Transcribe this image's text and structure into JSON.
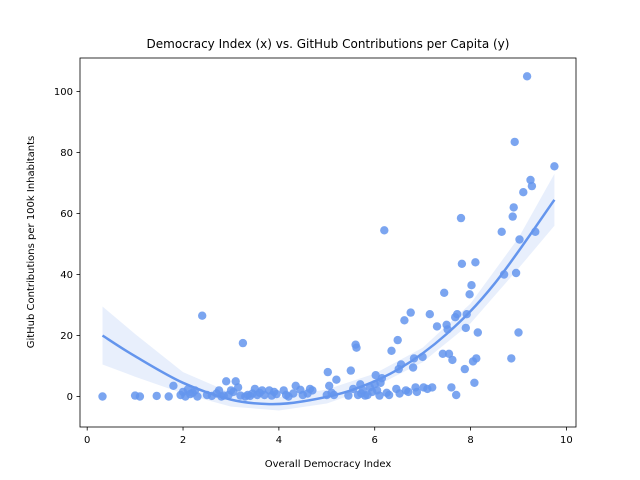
{
  "chart_data": {
    "type": "scatter",
    "title": "Democracy Index (x) vs. GitHub Contributions per Capita (y)",
    "xlabel": "Overall Democracy Index",
    "ylabel": "GitHub Contributions per 100k Inhabitants",
    "xlim": [
      -0.15,
      10.2
    ],
    "ylim": [
      -10,
      111
    ],
    "xticks": [
      0,
      2,
      4,
      6,
      8,
      10
    ],
    "yticks": [
      0,
      20,
      40,
      60,
      80,
      100
    ],
    "grid": false,
    "point_color": "#6495ED",
    "fit": {
      "type": "quadratic",
      "x_range": [
        0.32,
        9.75
      ],
      "line_points": [
        [
          0.32,
          20
        ],
        [
          1.0,
          13.2
        ],
        [
          2.0,
          4.5
        ],
        [
          3.0,
          -1.0
        ],
        [
          3.8,
          -2.5
        ],
        [
          4.5,
          -1.6
        ],
        [
          5.5,
          2.0
        ],
        [
          6.5,
          9.0
        ],
        [
          7.5,
          20.5
        ],
        [
          8.5,
          37.0
        ],
        [
          9.75,
          64.5
        ]
      ],
      "ci_upper": [
        [
          0.32,
          29.5
        ],
        [
          1.0,
          20.5
        ],
        [
          2.0,
          8.0
        ],
        [
          3.0,
          1.2
        ],
        [
          4.0,
          -0.2
        ],
        [
          5.0,
          2.3
        ],
        [
          6.0,
          7.5
        ],
        [
          7.0,
          16.0
        ],
        [
          8.0,
          30.5
        ],
        [
          9.0,
          52.0
        ],
        [
          9.75,
          73.0
        ]
      ],
      "ci_lower": [
        [
          0.32,
          10.5
        ],
        [
          1.0,
          6.5
        ],
        [
          2.0,
          1.0
        ],
        [
          3.0,
          -3.3
        ],
        [
          4.0,
          -4.6
        ],
        [
          5.0,
          -2.3
        ],
        [
          6.0,
          3.2
        ],
        [
          7.0,
          11.2
        ],
        [
          8.0,
          24.0
        ],
        [
          9.0,
          42.0
        ],
        [
          9.75,
          56.0
        ]
      ]
    },
    "points": [
      [
        0.32,
        0
      ],
      [
        1.0,
        0.3
      ],
      [
        1.1,
        0
      ],
      [
        1.45,
        0.2
      ],
      [
        1.7,
        0
      ],
      [
        1.8,
        3.5
      ],
      [
        1.95,
        0.5
      ],
      [
        2.0,
        1.5
      ],
      [
        2.05,
        0
      ],
      [
        2.1,
        2.3
      ],
      [
        2.15,
        0.8
      ],
      [
        2.2,
        1.2
      ],
      [
        2.25,
        2.0
      ],
      [
        2.3,
        0
      ],
      [
        2.4,
        26.5
      ],
      [
        2.5,
        0.5
      ],
      [
        2.6,
        0.2
      ],
      [
        2.7,
        1.0
      ],
      [
        2.75,
        2.0
      ],
      [
        2.8,
        0
      ],
      [
        2.85,
        0.3
      ],
      [
        2.9,
        5.0
      ],
      [
        2.95,
        0.5
      ],
      [
        3.0,
        2.0
      ],
      [
        3.05,
        1.5
      ],
      [
        3.1,
        5.0
      ],
      [
        3.15,
        3.0
      ],
      [
        3.2,
        0.3
      ],
      [
        3.25,
        17.5
      ],
      [
        3.3,
        0
      ],
      [
        3.35,
        0.5
      ],
      [
        3.4,
        0.2
      ],
      [
        3.45,
        1.0
      ],
      [
        3.5,
        2.5
      ],
      [
        3.55,
        0.5
      ],
      [
        3.6,
        1.2
      ],
      [
        3.65,
        2.0
      ],
      [
        3.7,
        0.5
      ],
      [
        3.8,
        2.0
      ],
      [
        3.85,
        0.3
      ],
      [
        3.9,
        1.5
      ],
      [
        3.95,
        0.8
      ],
      [
        4.1,
        2.0
      ],
      [
        4.15,
        0.5
      ],
      [
        4.2,
        0
      ],
      [
        4.3,
        1.0
      ],
      [
        4.35,
        3.5
      ],
      [
        4.45,
        2.2
      ],
      [
        4.5,
        0.5
      ],
      [
        4.6,
        1.0
      ],
      [
        4.65,
        2.5
      ],
      [
        4.7,
        2.0
      ],
      [
        5.0,
        0.5
      ],
      [
        5.02,
        8.0
      ],
      [
        5.05,
        3.5
      ],
      [
        5.1,
        1.2
      ],
      [
        5.15,
        0.5
      ],
      [
        5.2,
        5.5
      ],
      [
        5.45,
        0.3
      ],
      [
        5.5,
        8.5
      ],
      [
        5.55,
        2.5
      ],
      [
        5.6,
        17.0
      ],
      [
        5.62,
        16.0
      ],
      [
        5.65,
        0.5
      ],
      [
        5.7,
        4.0
      ],
      [
        5.72,
        1.0
      ],
      [
        5.75,
        2.0
      ],
      [
        5.8,
        0.3
      ],
      [
        5.85,
        0.5
      ],
      [
        5.9,
        3.0
      ],
      [
        5.95,
        1.5
      ],
      [
        6.0,
        4.0
      ],
      [
        6.02,
        7.0
      ],
      [
        6.05,
        2.0
      ],
      [
        6.1,
        0.3
      ],
      [
        6.12,
        4.5
      ],
      [
        6.15,
        6.0
      ],
      [
        6.2,
        54.5
      ],
      [
        6.25,
        1.2
      ],
      [
        6.3,
        0.5
      ],
      [
        6.35,
        15.0
      ],
      [
        6.45,
        2.5
      ],
      [
        6.48,
        18.5
      ],
      [
        6.5,
        9.0
      ],
      [
        6.52,
        1.0
      ],
      [
        6.55,
        10.5
      ],
      [
        6.62,
        25.0
      ],
      [
        6.65,
        2.0
      ],
      [
        6.7,
        1.5
      ],
      [
        6.75,
        27.5
      ],
      [
        6.8,
        9.5
      ],
      [
        6.82,
        12.5
      ],
      [
        6.85,
        3.0
      ],
      [
        6.88,
        1.5
      ],
      [
        7.0,
        13.0
      ],
      [
        7.02,
        3.0
      ],
      [
        7.1,
        2.5
      ],
      [
        7.15,
        27.0
      ],
      [
        7.2,
        3.0
      ],
      [
        7.3,
        23.0
      ],
      [
        7.42,
        14.0
      ],
      [
        7.45,
        34.0
      ],
      [
        7.5,
        23.5
      ],
      [
        7.52,
        22.0
      ],
      [
        7.55,
        14.0
      ],
      [
        7.6,
        3.0
      ],
      [
        7.62,
        12.0
      ],
      [
        7.68,
        26.0
      ],
      [
        7.7,
        0.5
      ],
      [
        7.72,
        27.0
      ],
      [
        7.8,
        58.5
      ],
      [
        7.82,
        43.5
      ],
      [
        7.88,
        9.0
      ],
      [
        7.9,
        22.5
      ],
      [
        7.92,
        27.0
      ],
      [
        7.98,
        33.5
      ],
      [
        8.02,
        36.5
      ],
      [
        8.05,
        11.5
      ],
      [
        8.08,
        4.5
      ],
      [
        8.1,
        44.0
      ],
      [
        8.12,
        12.5
      ],
      [
        8.15,
        21.0
      ],
      [
        8.65,
        54.0
      ],
      [
        8.7,
        40.0
      ],
      [
        8.85,
        12.5
      ],
      [
        8.88,
        59.0
      ],
      [
        8.9,
        62.0
      ],
      [
        8.92,
        83.5
      ],
      [
        8.95,
        40.5
      ],
      [
        9.0,
        21.0
      ],
      [
        9.02,
        51.5
      ],
      [
        9.1,
        67.0
      ],
      [
        9.18,
        105.0
      ],
      [
        9.25,
        71.0
      ],
      [
        9.28,
        69.0
      ],
      [
        9.35,
        54.0
      ],
      [
        9.75,
        75.5
      ]
    ]
  }
}
